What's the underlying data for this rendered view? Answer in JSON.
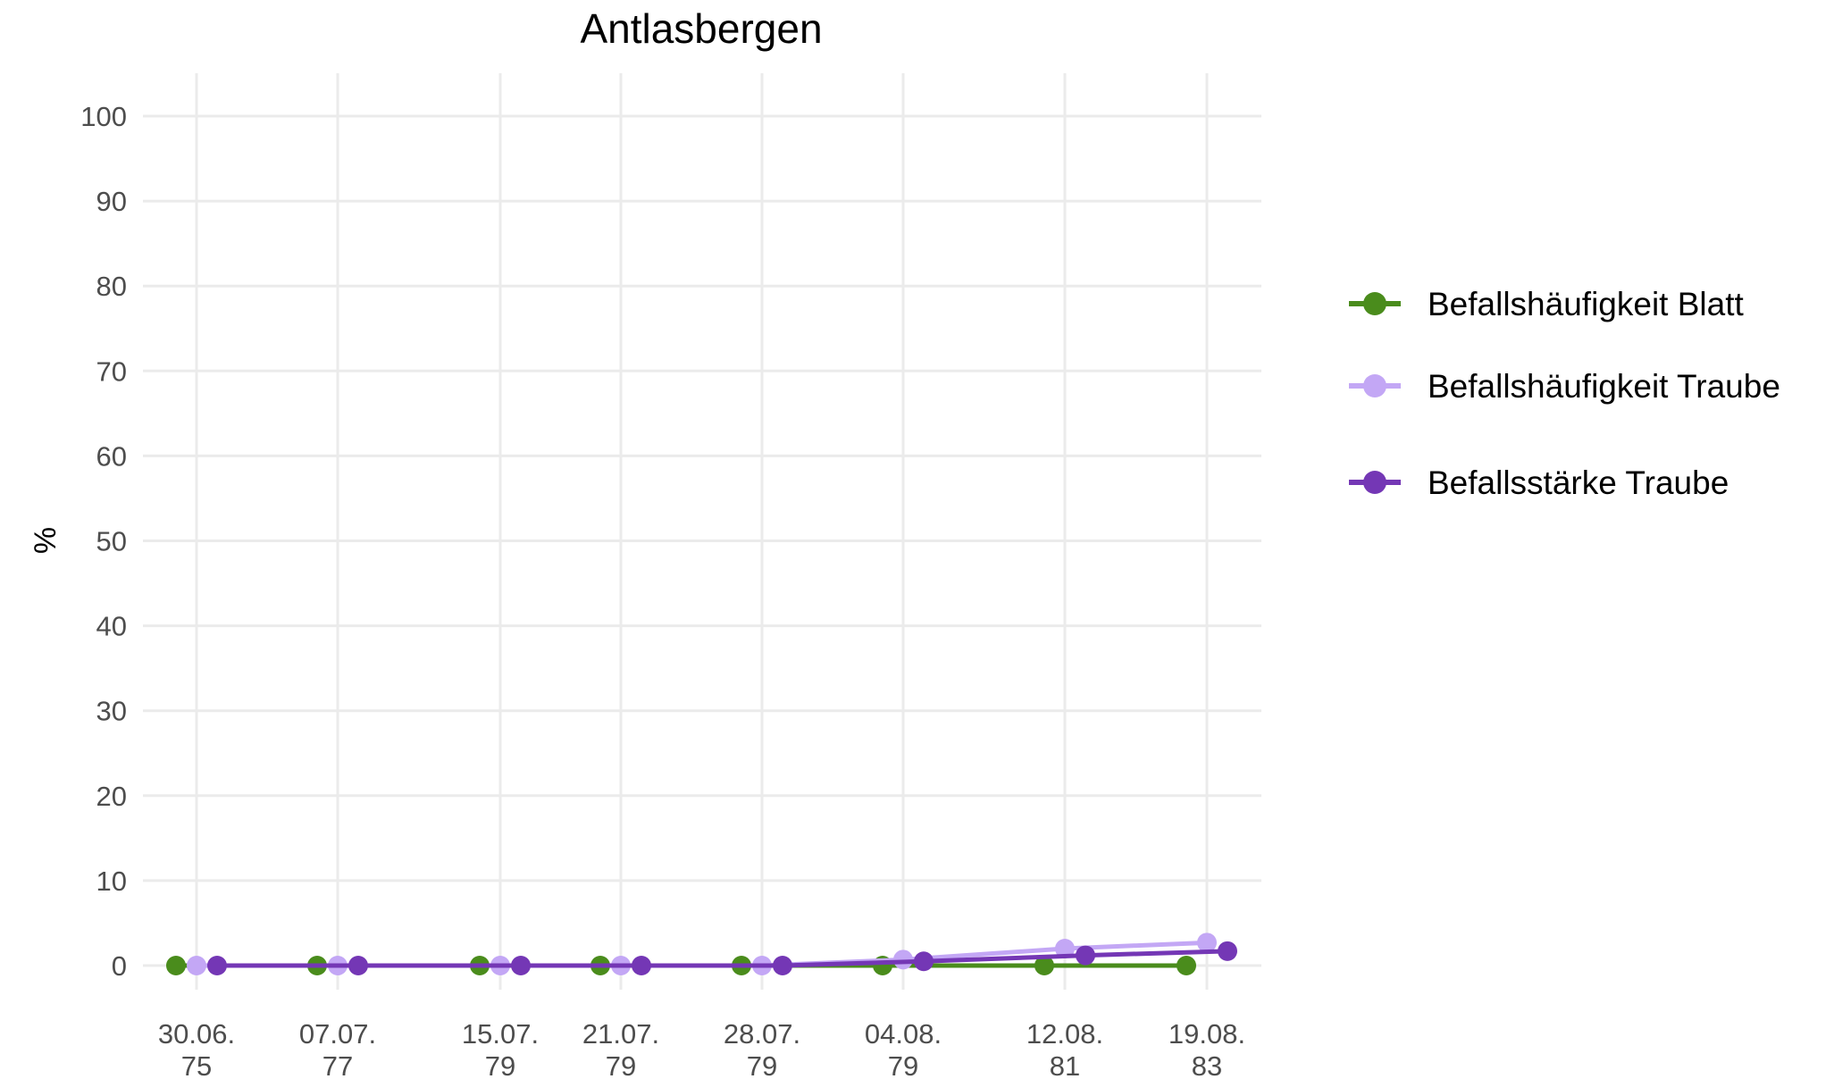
{
  "chart_data": {
    "type": "line",
    "title": "Antlasbergen",
    "xlabel": "",
    "ylabel": "%",
    "ylim": [
      0,
      100
    ],
    "yticks": [
      "0",
      "10",
      "20",
      "30",
      "40",
      "50",
      "60",
      "70",
      "80",
      "90",
      "100"
    ],
    "categories": [
      "30.06.\n75",
      "07.07.\n77",
      "15.07.\n79",
      "21.07.\n79",
      "28.07.\n79",
      "04.08.\n79",
      "12.08.\n81",
      "19.08.\n83"
    ],
    "category_lines": [
      [
        "30.06.",
        "75"
      ],
      [
        "07.07.",
        "77"
      ],
      [
        "15.07.",
        "79"
      ],
      [
        "21.07.",
        "79"
      ],
      [
        "28.07.",
        "79"
      ],
      [
        "04.08.",
        "79"
      ],
      [
        "12.08.",
        "81"
      ],
      [
        "19.08.",
        "83"
      ]
    ],
    "grid": true,
    "legend_position": "right",
    "series": [
      {
        "name": "Befallshäufigkeit Blatt",
        "color": "#4a8c1c",
        "values": [
          0,
          0,
          0,
          0,
          0,
          0,
          0,
          0
        ]
      },
      {
        "name": "Befallshäufigkeit Traube",
        "color": "#c3a7f5",
        "values": [
          0,
          0,
          0,
          0,
          0,
          0.7,
          2,
          2.7
        ]
      },
      {
        "name": "Befallsstärke Traube",
        "color": "#7437b5",
        "values": [
          0,
          0,
          0,
          0,
          0,
          0.5,
          1.2,
          1.7
        ]
      }
    ]
  }
}
